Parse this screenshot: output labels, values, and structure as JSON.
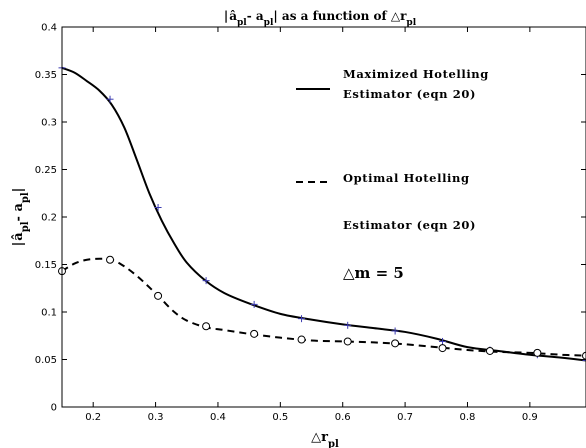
{
  "chart_data": {
    "type": "line",
    "title": "|âpl- apl| as a function of △rpl",
    "xlabel": "△rpl",
    "ylabel": "|âpl- apl|",
    "xlim": [
      0.15,
      0.99
    ],
    "ylim": [
      0,
      0.4
    ],
    "xticks": [
      0.2,
      0.3,
      0.4,
      0.5,
      0.6,
      0.7,
      0.8,
      0.9
    ],
    "yticks": [
      0,
      0.05,
      0.1,
      0.15,
      0.2,
      0.25,
      0.3,
      0.35,
      0.4
    ],
    "xtick_labels": [
      "0.2",
      "0.3",
      "0.4",
      "0.5",
      "0.6",
      "0.7",
      "0.8",
      "0.9"
    ],
    "ytick_labels": [
      "0",
      "0.05",
      "0.1",
      "0.15",
      "0.2",
      "0.25",
      "0.3",
      "0.35",
      "0.4"
    ],
    "grid": false,
    "legend_position": "top-right",
    "series": [
      {
        "name": "Maximized Hotelling Estimator (eqn 20)",
        "legend_lines": [
          "Maximized Hotelling",
          "Estimator (eqn 20)"
        ],
        "style": "solid",
        "marker": "plus",
        "color": "#000000",
        "marker_color": "#3b3bb0",
        "curve": {
          "x": [
            0.15,
            0.17,
            0.19,
            0.21,
            0.23,
            0.25,
            0.27,
            0.29,
            0.31,
            0.33,
            0.35,
            0.38,
            0.41,
            0.45,
            0.5,
            0.55,
            0.6,
            0.65,
            0.7,
            0.75,
            0.8,
            0.85,
            0.9,
            0.95,
            0.99
          ],
          "y": [
            0.357,
            0.352,
            0.343,
            0.333,
            0.318,
            0.294,
            0.26,
            0.225,
            0.196,
            0.172,
            0.152,
            0.133,
            0.12,
            0.109,
            0.098,
            0.092,
            0.087,
            0.083,
            0.079,
            0.072,
            0.063,
            0.059,
            0.055,
            0.052,
            0.049
          ]
        },
        "markers": {
          "x": [
            0.15,
            0.227,
            0.304,
            0.381,
            0.458,
            0.534,
            0.608,
            0.684,
            0.76,
            0.836,
            0.912,
            0.99
          ],
          "y": [
            0.357,
            0.324,
            0.21,
            0.133,
            0.108,
            0.093,
            0.086,
            0.08,
            0.069,
            0.06,
            0.055,
            0.049
          ]
        }
      },
      {
        "name": "Optimal Hotelling Estimator (eqn 20)",
        "legend_lines": [
          "Optimal Hotelling",
          "Estimator (eqn 20)"
        ],
        "style": "dashed",
        "marker": "circle",
        "color": "#000000",
        "marker_color": "#000000",
        "curve": {
          "x": [
            0.15,
            0.17,
            0.19,
            0.21,
            0.23,
            0.25,
            0.27,
            0.29,
            0.31,
            0.33,
            0.35,
            0.38,
            0.41,
            0.45,
            0.5,
            0.55,
            0.6,
            0.65,
            0.7,
            0.75,
            0.8,
            0.85,
            0.9,
            0.95,
            0.99
          ],
          "y": [
            0.143,
            0.151,
            0.155,
            0.156,
            0.155,
            0.148,
            0.138,
            0.126,
            0.113,
            0.1,
            0.091,
            0.084,
            0.081,
            0.077,
            0.073,
            0.07,
            0.069,
            0.068,
            0.066,
            0.063,
            0.06,
            0.058,
            0.057,
            0.055,
            0.054
          ]
        },
        "markers": {
          "x": [
            0.15,
            0.227,
            0.304,
            0.381,
            0.458,
            0.534,
            0.608,
            0.684,
            0.76,
            0.836,
            0.912,
            0.99
          ],
          "y": [
            0.143,
            0.155,
            0.117,
            0.085,
            0.077,
            0.071,
            0.069,
            0.067,
            0.062,
            0.059,
            0.057,
            0.054
          ]
        }
      }
    ],
    "annotations": [
      "△m = 5"
    ]
  }
}
